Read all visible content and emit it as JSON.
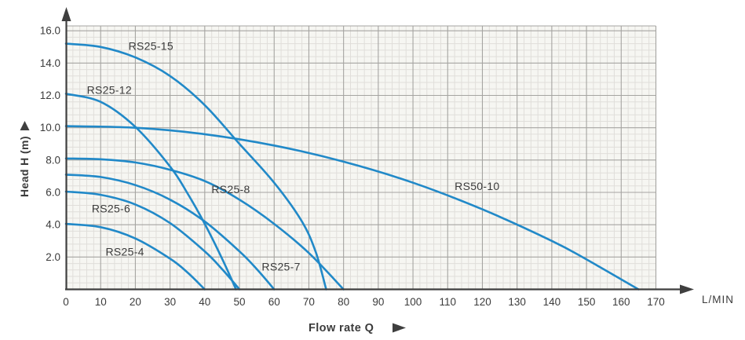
{
  "page": {
    "background": "#ffffff",
    "description": "Pump performance curves: Head vs Flow rate"
  },
  "chart_data": {
    "type": "line",
    "title": "",
    "xlabel": "Flow rate Q",
    "x_unit": "L/MIN",
    "ylabel": "Head H (m)",
    "xlim": [
      0,
      170
    ],
    "ylim": [
      0,
      16.3
    ],
    "x_major_ticks": [
      0,
      10,
      20,
      30,
      40,
      50,
      60,
      70,
      80,
      90,
      100,
      110,
      120,
      130,
      140,
      150,
      160,
      170
    ],
    "y_major_ticks": [
      2,
      4,
      6,
      8,
      10,
      12,
      14,
      16
    ],
    "y_tick_labels": [
      "2.0",
      "4.0",
      "6.0",
      "8.0",
      "10.0",
      "12.0",
      "14.0",
      "16.0"
    ],
    "x_minor_step": 2,
    "y_minor_step": 0.4,
    "grid": "major+minor",
    "legend_position": "inline-curve-labels",
    "series": [
      {
        "name": "RS25-15",
        "label": "RS25-15",
        "label_pos": [
          24.5,
          15.05
        ],
        "points": [
          [
            0,
            15.2
          ],
          [
            10,
            15.0
          ],
          [
            20,
            14.35
          ],
          [
            30,
            13.2
          ],
          [
            40,
            11.4
          ],
          [
            50,
            9.0
          ],
          [
            60,
            6.6
          ],
          [
            68,
            4.2
          ],
          [
            72,
            2.3
          ],
          [
            75,
            0
          ]
        ]
      },
      {
        "name": "RS25-12",
        "label": "RS25-12",
        "label_pos": [
          12.5,
          12.35
        ],
        "points": [
          [
            0,
            12.1
          ],
          [
            10,
            11.6
          ],
          [
            20,
            10.05
          ],
          [
            30,
            7.6
          ],
          [
            35,
            5.95
          ],
          [
            40,
            4.05
          ],
          [
            45,
            1.9
          ],
          [
            49,
            0
          ]
        ]
      },
      {
        "name": "RS50-10",
        "label": "RS50-10",
        "label_pos": [
          118.5,
          6.4
        ],
        "points": [
          [
            0,
            10.1
          ],
          [
            20,
            10.0
          ],
          [
            40,
            9.6
          ],
          [
            60,
            8.9
          ],
          [
            80,
            7.9
          ],
          [
            100,
            6.6
          ],
          [
            120,
            4.95
          ],
          [
            140,
            3.0
          ],
          [
            150,
            1.85
          ],
          [
            165,
            0
          ]
        ]
      },
      {
        "name": "RS25-8",
        "label": "RS25-8",
        "label_pos": [
          47.5,
          6.2
        ],
        "points": [
          [
            0,
            8.1
          ],
          [
            10,
            8.05
          ],
          [
            20,
            7.85
          ],
          [
            30,
            7.4
          ],
          [
            40,
            6.7
          ],
          [
            50,
            5.55
          ],
          [
            60,
            4.05
          ],
          [
            70,
            2.25
          ],
          [
            80,
            0
          ]
        ]
      },
      {
        "name": "RS25-7",
        "label": "RS25-7",
        "label_pos": [
          62,
          1.4
        ],
        "points": [
          [
            0,
            7.1
          ],
          [
            10,
            6.95
          ],
          [
            20,
            6.45
          ],
          [
            30,
            5.55
          ],
          [
            40,
            4.2
          ],
          [
            50,
            2.35
          ],
          [
            55,
            1.25
          ],
          [
            60,
            0
          ]
        ]
      },
      {
        "name": "RS25-6",
        "label": "RS25-6",
        "label_pos": [
          13,
          5.0
        ],
        "points": [
          [
            0,
            6.05
          ],
          [
            10,
            5.85
          ],
          [
            20,
            5.25
          ],
          [
            30,
            4.1
          ],
          [
            40,
            2.35
          ],
          [
            45,
            1.25
          ],
          [
            50,
            0
          ]
        ]
      },
      {
        "name": "RS25-4",
        "label": "RS25-4",
        "label_pos": [
          17,
          2.33
        ],
        "points": [
          [
            0,
            4.05
          ],
          [
            10,
            3.85
          ],
          [
            20,
            3.15
          ],
          [
            30,
            1.9
          ],
          [
            35,
            1.05
          ],
          [
            40,
            0
          ]
        ]
      }
    ],
    "colors": {
      "curve": "#2189c8",
      "grid_major": "#a5a4a1",
      "grid_minor": "#e0deda",
      "plot_bg": "#f6f6f2",
      "axis": "#3f3f3f",
      "text": "#3b3b3b",
      "page_bg": "#ffffff"
    }
  }
}
